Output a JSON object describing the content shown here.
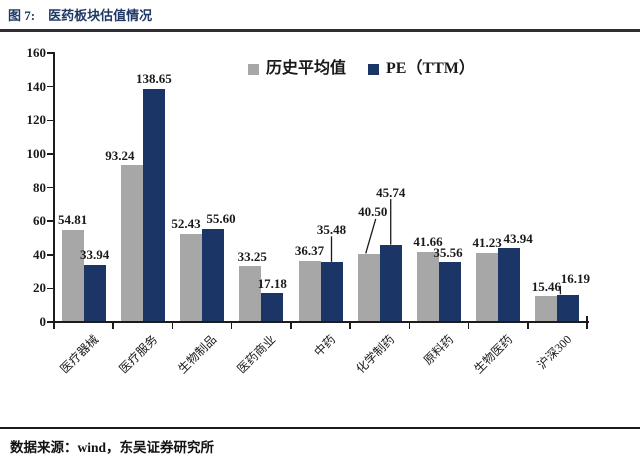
{
  "header": {
    "figure_label": "图 7:",
    "title": "医药板块估值情况"
  },
  "colors": {
    "series_avg": "#A7A7A7",
    "series_pe": "#1B3566",
    "title_text": "#1F3864",
    "axis_line": "#1C1C1C"
  },
  "chart_data": {
    "type": "bar",
    "title": "图 7: 医药板块估值情况",
    "categories": [
      "医疗器械",
      "医疗服务",
      "生物制品",
      "医药商业",
      "中药",
      "化学制药",
      "原料药",
      "生物医药",
      "沪深300"
    ],
    "series": [
      {
        "name": "历史平均值",
        "color": "#A7A7A7",
        "values": [
          54.81,
          93.24,
          52.43,
          33.25,
          36.37,
          40.5,
          41.66,
          41.23,
          15.46
        ]
      },
      {
        "name": "PE（TTM）",
        "color": "#1B3566",
        "values": [
          33.94,
          138.65,
          55.6,
          17.18,
          35.48,
          45.74,
          35.56,
          43.94,
          16.19
        ]
      }
    ],
    "ylim": [
      0,
      160
    ],
    "ytick_step": 20,
    "grid": false,
    "legend_position": "top-center",
    "data_labels": true,
    "data_label_decimals": 2
  },
  "footer": {
    "source": "数据来源：wind，东吴证券研究所"
  }
}
